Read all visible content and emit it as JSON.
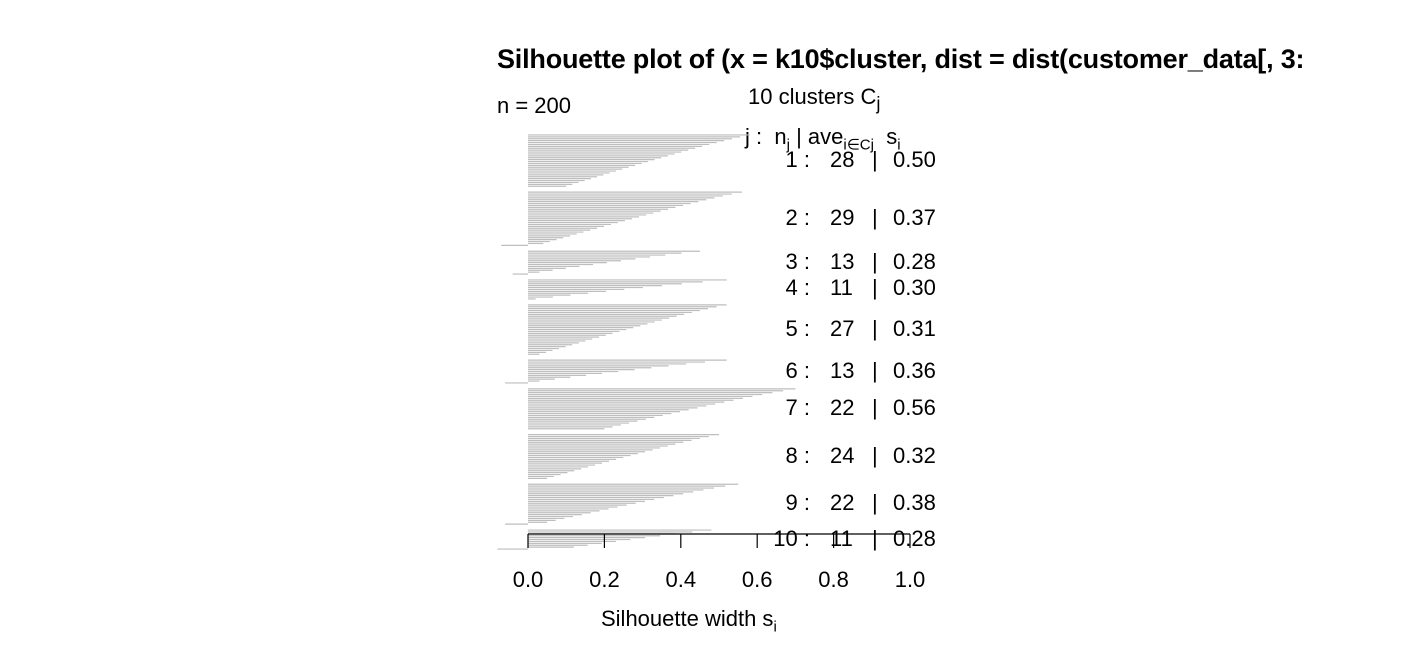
{
  "chart_data": {
    "type": "bar",
    "orientation": "horizontal",
    "title": "Silhouette plot of (x = k10$cluster, dist = dist(customer_data[, 3:",
    "n_label": "n = 200",
    "clusters_label": "10  clusters  C",
    "clusters_label_sub": "j",
    "header": {
      "j": "j :",
      "n": "n",
      "n_sub": "j",
      "ave": "| ave",
      "ave_sub": "i∈Cj",
      "s": "s",
      "s_sub": "i"
    },
    "xlabel": "Silhouette width s",
    "xlabel_sub": "i",
    "xlim": [
      0,
      1
    ],
    "xticks": [
      "0.0",
      "0.2",
      "0.4",
      "0.6",
      "0.8",
      "1.0"
    ],
    "clusters": [
      {
        "j": "1 :",
        "n": "28",
        "sep": "|",
        "avg": "0.50",
        "max": 0.58,
        "min": 0.1,
        "negatives": []
      },
      {
        "j": "2 :",
        "n": "29",
        "sep": "|",
        "avg": "0.37",
        "max": 0.56,
        "min": 0.04,
        "negatives": [
          -0.07
        ]
      },
      {
        "j": "3 :",
        "n": "13",
        "sep": "|",
        "avg": "0.28",
        "max": 0.45,
        "min": 0.03,
        "negatives": [
          -0.04
        ]
      },
      {
        "j": "4 :",
        "n": "11",
        "sep": "|",
        "avg": "0.30",
        "max": 0.52,
        "min": 0.02,
        "negatives": []
      },
      {
        "j": "5 :",
        "n": "27",
        "sep": "|",
        "avg": "0.31",
        "max": 0.52,
        "min": 0.03,
        "negatives": []
      },
      {
        "j": "6 :",
        "n": "13",
        "sep": "|",
        "avg": "0.36",
        "max": 0.52,
        "min": 0.03,
        "negatives": [
          -0.06
        ]
      },
      {
        "j": "7 :",
        "n": "22",
        "sep": "|",
        "avg": "0.56",
        "max": 0.7,
        "min": 0.2,
        "negatives": []
      },
      {
        "j": "8 :",
        "n": "24",
        "sep": "|",
        "avg": "0.32",
        "max": 0.5,
        "min": 0.05,
        "negatives": []
      },
      {
        "j": "9 :",
        "n": "22",
        "sep": "|",
        "avg": "0.38",
        "max": 0.55,
        "min": 0.05,
        "negatives": [
          -0.06
        ]
      },
      {
        "j": "10 :",
        "n": "11",
        "sep": "|",
        "avg": "0.28",
        "max": 0.48,
        "min": 0.12,
        "negatives": [
          -0.08
        ]
      }
    ],
    "bar_color": "#bebebe",
    "axis_color": "#000000",
    "grid": false,
    "legend": "none"
  }
}
